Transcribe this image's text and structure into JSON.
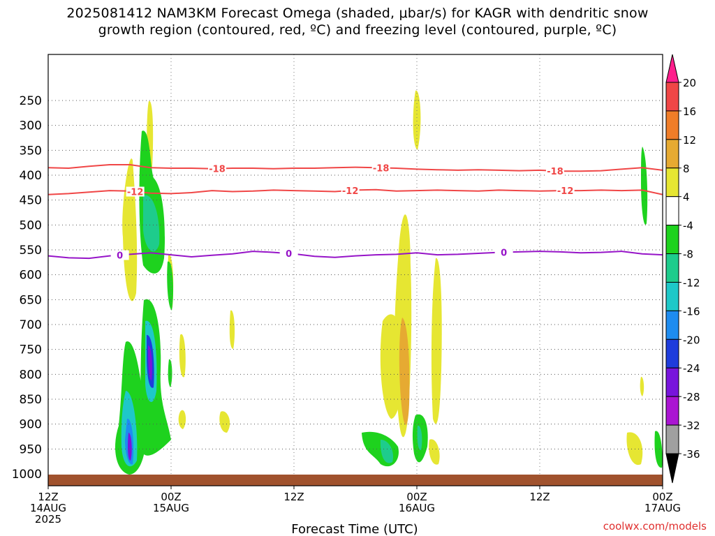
{
  "chart_data": {
    "type": "heatmap",
    "title_line1": "2025081412 NAM3KM Forecast Omega (shaded, μbar/s) for KAGR with dendritic snow",
    "title_line2": "growth region (contoured, red, ºC) and freezing level (contoured, purple, ºC)",
    "xlabel": "Forecast Time (UTC)",
    "credit": "coolwx.com/models",
    "x_ticks": [
      {
        "hour": 0,
        "lines": [
          "12Z",
          "14AUG",
          "2025"
        ]
      },
      {
        "hour": 12,
        "lines": [
          "00Z",
          "15AUG"
        ]
      },
      {
        "hour": 24,
        "lines": [
          "12Z"
        ]
      },
      {
        "hour": 36,
        "lines": [
          "00Z",
          "16AUG"
        ]
      },
      {
        "hour": 48,
        "lines": [
          "12Z"
        ]
      },
      {
        "hour": 60,
        "lines": [
          "00Z",
          "17AUG"
        ]
      }
    ],
    "xlim_hours": [
      0,
      60
    ],
    "y_ticks": [
      250,
      300,
      350,
      400,
      450,
      500,
      550,
      600,
      650,
      700,
      750,
      800,
      850,
      900,
      950,
      1000
    ],
    "ylim_hPa": [
      200,
      1020
    ],
    "colorbar": {
      "levels": [
        20,
        16,
        12,
        8,
        4,
        -4,
        -8,
        -12,
        -16,
        -20,
        -24,
        -28,
        -32,
        -36
      ],
      "colors": [
        "#ff1e8c",
        "#f04646",
        "#f07d28",
        "#e6aa32",
        "#e6e632",
        "#ffffff",
        "#1ed21e",
        "#1ecc8c",
        "#1ec8c8",
        "#1e8cf0",
        "#1e3cdc",
        "#7814dc",
        "#aa14d2",
        "#a0a0a0",
        "#000000"
      ]
    },
    "contours": [
      {
        "name": "-18",
        "color": "#f04646",
        "x": [
          0,
          2,
          4,
          6,
          8,
          10,
          12,
          14,
          16,
          18,
          20,
          22,
          24,
          26,
          28,
          30,
          32,
          34,
          36,
          38,
          40,
          42,
          44,
          46,
          48,
          50,
          52,
          54,
          56,
          58,
          60
        ],
        "y": [
          385,
          386,
          382,
          379,
          379,
          385,
          386,
          386,
          387,
          386,
          386,
          387,
          386,
          386,
          385,
          384,
          385,
          386,
          388,
          389,
          390,
          389,
          390,
          391,
          390,
          392,
          392,
          391,
          388,
          385,
          390
        ],
        "labels": [
          {
            "x": 16.5,
            "text": "-18"
          },
          {
            "x": 32.5,
            "text": "-18"
          },
          {
            "x": 49.5,
            "text": "-18"
          }
        ]
      },
      {
        "name": "-12",
        "color": "#f04646",
        "x": [
          0,
          2,
          4,
          6,
          8,
          10,
          12,
          14,
          16,
          18,
          20,
          22,
          24,
          26,
          28,
          30,
          32,
          34,
          36,
          38,
          40,
          42,
          44,
          46,
          48,
          50,
          52,
          54,
          56,
          58,
          60
        ],
        "y": [
          439,
          437,
          434,
          431,
          432,
          436,
          437,
          435,
          431,
          433,
          432,
          430,
          431,
          432,
          433,
          430,
          429,
          432,
          431,
          430,
          431,
          432,
          430,
          431,
          432,
          431,
          431,
          430,
          431,
          430,
          439
        ],
        "labels": [
          {
            "x": 8.5,
            "text": "-12"
          },
          {
            "x": 29.5,
            "text": "-12"
          },
          {
            "x": 50.5,
            "text": "-12"
          }
        ]
      },
      {
        "name": "0",
        "color": "#9614c8",
        "x": [
          0,
          2,
          4,
          6,
          8,
          10,
          12,
          14,
          16,
          18,
          20,
          22,
          24,
          26,
          28,
          30,
          32,
          34,
          36,
          38,
          40,
          42,
          44,
          46,
          48,
          50,
          52,
          54,
          56,
          58,
          60
        ],
        "y": [
          562,
          566,
          567,
          562,
          559,
          556,
          560,
          564,
          561,
          558,
          553,
          555,
          558,
          563,
          565,
          562,
          560,
          559,
          556,
          560,
          559,
          557,
          555,
          554,
          553,
          554,
          556,
          555,
          553,
          558,
          560
        ],
        "labels": [
          {
            "x": 7,
            "text": "0"
          },
          {
            "x": 23.5,
            "text": "0"
          },
          {
            "x": 44.5,
            "text": "0"
          }
        ]
      }
    ]
  }
}
